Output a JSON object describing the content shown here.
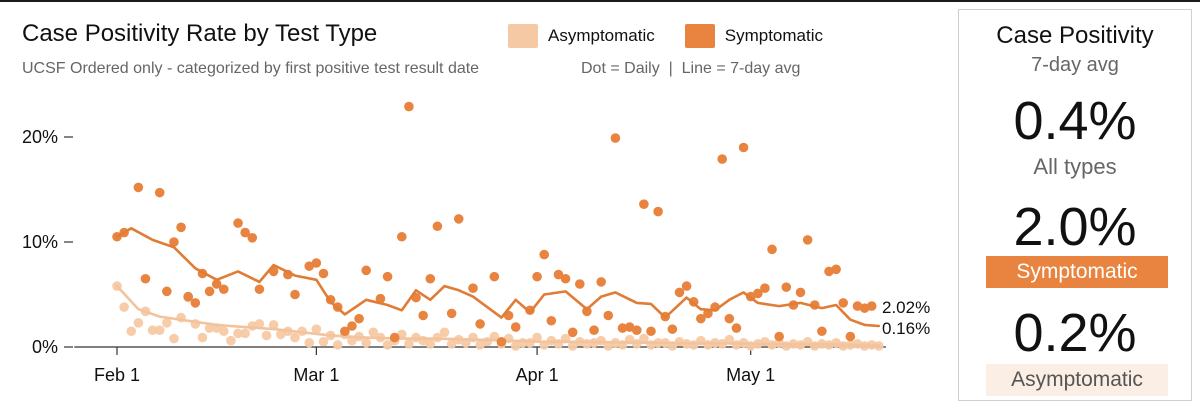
{
  "header": {
    "title": "Case Positivity Rate by Test Type",
    "subtitle": "UCSF Ordered only - categorized by first positive test result date",
    "legend_note": "Dot = Daily  |  Line = 7-day avg",
    "legend": [
      {
        "label": "Asymptomatic",
        "color": "#f5c9a4"
      },
      {
        "label": "Symptomatic",
        "color": "#e8843f"
      }
    ]
  },
  "summary": {
    "title": "Case Positivity",
    "subtitle": "7-day avg",
    "all": {
      "value": "0.4%",
      "label": "All types"
    },
    "symptomatic": {
      "value": "2.0%",
      "label": "Symptomatic",
      "color": "#e8843f"
    },
    "asymptomatic": {
      "value": "0.2%",
      "label": "Asymptomatic",
      "color": "#fbeee4"
    }
  },
  "chart_data": {
    "type": "scatter",
    "x_axis": {
      "ticks": [
        {
          "label": "Feb 1",
          "day": 0
        },
        {
          "label": "Mar 1",
          "day": 28
        },
        {
          "label": "Apr 1",
          "day": 59
        },
        {
          "label": "May 1",
          "day": 89
        }
      ],
      "range_days": [
        -6,
        108
      ]
    },
    "y_axis": {
      "ticks": [
        {
          "label": "0%",
          "value": 0
        },
        {
          "label": "10%",
          "value": 10
        },
        {
          "label": "20%",
          "value": 20
        }
      ],
      "ylim": [
        0,
        24
      ]
    },
    "end_labels": [
      {
        "text": "2.02%",
        "value": 2.02,
        "series": "Symptomatic"
      },
      {
        "text": "0.16%",
        "value": 0.16,
        "series": "Asymptomatic"
      }
    ],
    "series": [
      {
        "name": "Symptomatic",
        "color": "#e8843f",
        "daily": [
          [
            0,
            10.5
          ],
          [
            1,
            10.9
          ],
          [
            3,
            15.2
          ],
          [
            4,
            6.5
          ],
          [
            6,
            14.7
          ],
          [
            7,
            5.3
          ],
          [
            8,
            10.0
          ],
          [
            9,
            11.4
          ],
          [
            10,
            4.8
          ],
          [
            11,
            4.2
          ],
          [
            12,
            7.0
          ],
          [
            13,
            5.3
          ],
          [
            14,
            6.0
          ],
          [
            15,
            5.5
          ],
          [
            17,
            11.8
          ],
          [
            18,
            10.9
          ],
          [
            19,
            10.4
          ],
          [
            20,
            5.5
          ],
          [
            22,
            7.2
          ],
          [
            24,
            6.9
          ],
          [
            25,
            5.0
          ],
          [
            27,
            7.7
          ],
          [
            28,
            8.0
          ],
          [
            29,
            7.0
          ],
          [
            30,
            4.5
          ],
          [
            31,
            3.8
          ],
          [
            32,
            1.5
          ],
          [
            33,
            2.0
          ],
          [
            34,
            2.7
          ],
          [
            35,
            7.3
          ],
          [
            37,
            4.6
          ],
          [
            38,
            6.7
          ],
          [
            39,
            0.9
          ],
          [
            40,
            10.5
          ],
          [
            41,
            22.9
          ],
          [
            42,
            4.7
          ],
          [
            43,
            3.0
          ],
          [
            44,
            6.5
          ],
          [
            45,
            11.5
          ],
          [
            47,
            3.2
          ],
          [
            48,
            12.2
          ],
          [
            50,
            5.6
          ],
          [
            51,
            2.2
          ],
          [
            53,
            6.7
          ],
          [
            54,
            0.5
          ],
          [
            55,
            3.0
          ],
          [
            56,
            1.9
          ],
          [
            58,
            3.5
          ],
          [
            59,
            6.7
          ],
          [
            60,
            8.8
          ],
          [
            61,
            2.5
          ],
          [
            62,
            6.9
          ],
          [
            63,
            6.5
          ],
          [
            64,
            1.4
          ],
          [
            65,
            6.0
          ],
          [
            66,
            3.4
          ],
          [
            67,
            1.6
          ],
          [
            68,
            6.2
          ],
          [
            69,
            3.0
          ],
          [
            70,
            19.9
          ],
          [
            71,
            1.8
          ],
          [
            72,
            1.9
          ],
          [
            73,
            1.6
          ],
          [
            74,
            13.6
          ],
          [
            75,
            1.5
          ],
          [
            76,
            12.9
          ],
          [
            77,
            2.9
          ],
          [
            78,
            1.7
          ],
          [
            79,
            5.2
          ],
          [
            80,
            5.8
          ],
          [
            81,
            4.3
          ],
          [
            82,
            2.7
          ],
          [
            83,
            3.2
          ],
          [
            84,
            3.8
          ],
          [
            85,
            17.9
          ],
          [
            86,
            2.7
          ],
          [
            87,
            1.8
          ],
          [
            88,
            19.0
          ],
          [
            89,
            4.8
          ],
          [
            90,
            5.1
          ],
          [
            91,
            5.6
          ],
          [
            92,
            9.3
          ],
          [
            93,
            1.0
          ],
          [
            94,
            5.7
          ],
          [
            95,
            4.0
          ],
          [
            96,
            5.2
          ],
          [
            97,
            10.2
          ],
          [
            98,
            4.0
          ],
          [
            99,
            1.5
          ],
          [
            100,
            7.2
          ],
          [
            101,
            7.4
          ],
          [
            102,
            4.2
          ],
          [
            103,
            1.0
          ],
          [
            104,
            3.9
          ],
          [
            105,
            3.7
          ],
          [
            106,
            3.9
          ]
        ],
        "avg": [
          [
            0,
            10.5
          ],
          [
            2,
            11.3
          ],
          [
            5,
            10.2
          ],
          [
            8,
            9.5
          ],
          [
            11,
            7.5
          ],
          [
            14,
            6.4
          ],
          [
            17,
            7.2
          ],
          [
            20,
            6.2
          ],
          [
            22,
            7.8
          ],
          [
            25,
            6.8
          ],
          [
            28,
            6.4
          ],
          [
            30,
            4.3
          ],
          [
            32,
            3.1
          ],
          [
            35,
            4.5
          ],
          [
            38,
            4.0
          ],
          [
            40,
            3.5
          ],
          [
            42,
            5.4
          ],
          [
            44,
            4.5
          ],
          [
            46,
            5.8
          ],
          [
            48,
            5.4
          ],
          [
            50,
            4.8
          ],
          [
            52,
            3.8
          ],
          [
            54,
            2.8
          ],
          [
            56,
            4.5
          ],
          [
            58,
            3.3
          ],
          [
            60,
            5.0
          ],
          [
            63,
            5.3
          ],
          [
            66,
            3.6
          ],
          [
            68,
            4.8
          ],
          [
            70,
            5.2
          ],
          [
            73,
            4.2
          ],
          [
            75,
            4.1
          ],
          [
            77,
            2.8
          ],
          [
            80,
            4.7
          ],
          [
            82,
            3.6
          ],
          [
            84,
            3.5
          ],
          [
            86,
            4.5
          ],
          [
            88,
            5.2
          ],
          [
            90,
            4.2
          ],
          [
            93,
            3.9
          ],
          [
            96,
            4.2
          ],
          [
            99,
            3.7
          ],
          [
            101,
            4.0
          ],
          [
            103,
            2.6
          ],
          [
            105,
            2.1
          ],
          [
            107,
            2.0
          ]
        ]
      },
      {
        "name": "Asymptomatic",
        "color": "#f5c9a4",
        "daily": [
          [
            0,
            5.8
          ],
          [
            1,
            3.8
          ],
          [
            2,
            1.5
          ],
          [
            3,
            2.3
          ],
          [
            4,
            3.4
          ],
          [
            5,
            1.6
          ],
          [
            6,
            1.6
          ],
          [
            7,
            2.3
          ],
          [
            8,
            0.8
          ],
          [
            9,
            2.8
          ],
          [
            10,
            4.7
          ],
          [
            11,
            2.2
          ],
          [
            12,
            0.9
          ],
          [
            13,
            1.8
          ],
          [
            14,
            1.8
          ],
          [
            15,
            1.5
          ],
          [
            16,
            0.6
          ],
          [
            17,
            1.3
          ],
          [
            18,
            1.3
          ],
          [
            19,
            2.0
          ],
          [
            20,
            2.2
          ],
          [
            21,
            1.1
          ],
          [
            22,
            2.1
          ],
          [
            23,
            1.2
          ],
          [
            24,
            1.5
          ],
          [
            25,
            0.9
          ],
          [
            26,
            1.5
          ],
          [
            27,
            0.4
          ],
          [
            28,
            1.7
          ],
          [
            29,
            0.5
          ],
          [
            30,
            1.1
          ],
          [
            31,
            0.2
          ],
          [
            32,
            1.2
          ],
          [
            33,
            0.6
          ],
          [
            34,
            1.0
          ],
          [
            35,
            0.4
          ],
          [
            36,
            1.4
          ],
          [
            37,
            0.9
          ],
          [
            38,
            0.2
          ],
          [
            39,
            0.6
          ],
          [
            40,
            1.2
          ],
          [
            41,
            0.3
          ],
          [
            42,
            0.9
          ],
          [
            43,
            0.6
          ],
          [
            44,
            0.3
          ],
          [
            45,
            0.9
          ],
          [
            46,
            1.4
          ],
          [
            47,
            0.3
          ],
          [
            48,
            0.7
          ],
          [
            49,
            0.4
          ],
          [
            50,
            0.9
          ],
          [
            51,
            0.2
          ],
          [
            52,
            0.5
          ],
          [
            53,
            1.0
          ],
          [
            54,
            0.3
          ],
          [
            55,
            0.8
          ],
          [
            56,
            0.1
          ],
          [
            57,
            0.4
          ],
          [
            58,
            0.4
          ],
          [
            59,
            0.9
          ],
          [
            60,
            0.2
          ],
          [
            61,
            0.6
          ],
          [
            62,
            0.3
          ],
          [
            63,
            0.8
          ],
          [
            64,
            0.1
          ],
          [
            65,
            0.5
          ],
          [
            66,
            0.3
          ],
          [
            67,
            0.4
          ],
          [
            68,
            0.6
          ],
          [
            69,
            0.1
          ],
          [
            70,
            0.4
          ],
          [
            71,
            0.2
          ],
          [
            72,
            0.7
          ],
          [
            73,
            0.3
          ],
          [
            74,
            0.8
          ],
          [
            75,
            0.2
          ],
          [
            76,
            0.4
          ],
          [
            77,
            0.4
          ],
          [
            78,
            0.1
          ],
          [
            79,
            0.5
          ],
          [
            80,
            0.3
          ],
          [
            81,
            0.2
          ],
          [
            82,
            0.6
          ],
          [
            83,
            0.2
          ],
          [
            84,
            0.4
          ],
          [
            85,
            0.3
          ],
          [
            86,
            0.7
          ],
          [
            87,
            0.2
          ],
          [
            88,
            0.4
          ],
          [
            89,
            0.1
          ],
          [
            90,
            0.3
          ],
          [
            91,
            0.5
          ],
          [
            92,
            0.2
          ],
          [
            93,
            0.4
          ],
          [
            94,
            0.1
          ],
          [
            95,
            0.3
          ],
          [
            96,
            0.2
          ],
          [
            97,
            0.5
          ],
          [
            98,
            0.1
          ],
          [
            99,
            0.3
          ],
          [
            100,
            0.2
          ],
          [
            101,
            0.4
          ],
          [
            102,
            0.1
          ],
          [
            103,
            0.2
          ],
          [
            104,
            0.3
          ],
          [
            105,
            0.1
          ],
          [
            106,
            0.2
          ],
          [
            107,
            0.1
          ]
        ],
        "avg": [
          [
            0,
            5.8
          ],
          [
            3,
            3.6
          ],
          [
            6,
            2.9
          ],
          [
            10,
            2.5
          ],
          [
            14,
            2.1
          ],
          [
            18,
            1.9
          ],
          [
            22,
            1.7
          ],
          [
            26,
            1.4
          ],
          [
            30,
            1.1
          ],
          [
            35,
            0.9
          ],
          [
            40,
            0.8
          ],
          [
            45,
            0.8
          ],
          [
            50,
            0.7
          ],
          [
            55,
            0.6
          ],
          [
            60,
            0.5
          ],
          [
            65,
            0.5
          ],
          [
            70,
            0.45
          ],
          [
            75,
            0.4
          ],
          [
            80,
            0.35
          ],
          [
            85,
            0.35
          ],
          [
            90,
            0.3
          ],
          [
            95,
            0.25
          ],
          [
            100,
            0.25
          ],
          [
            105,
            0.18
          ],
          [
            107,
            0.16
          ]
        ]
      }
    ]
  }
}
